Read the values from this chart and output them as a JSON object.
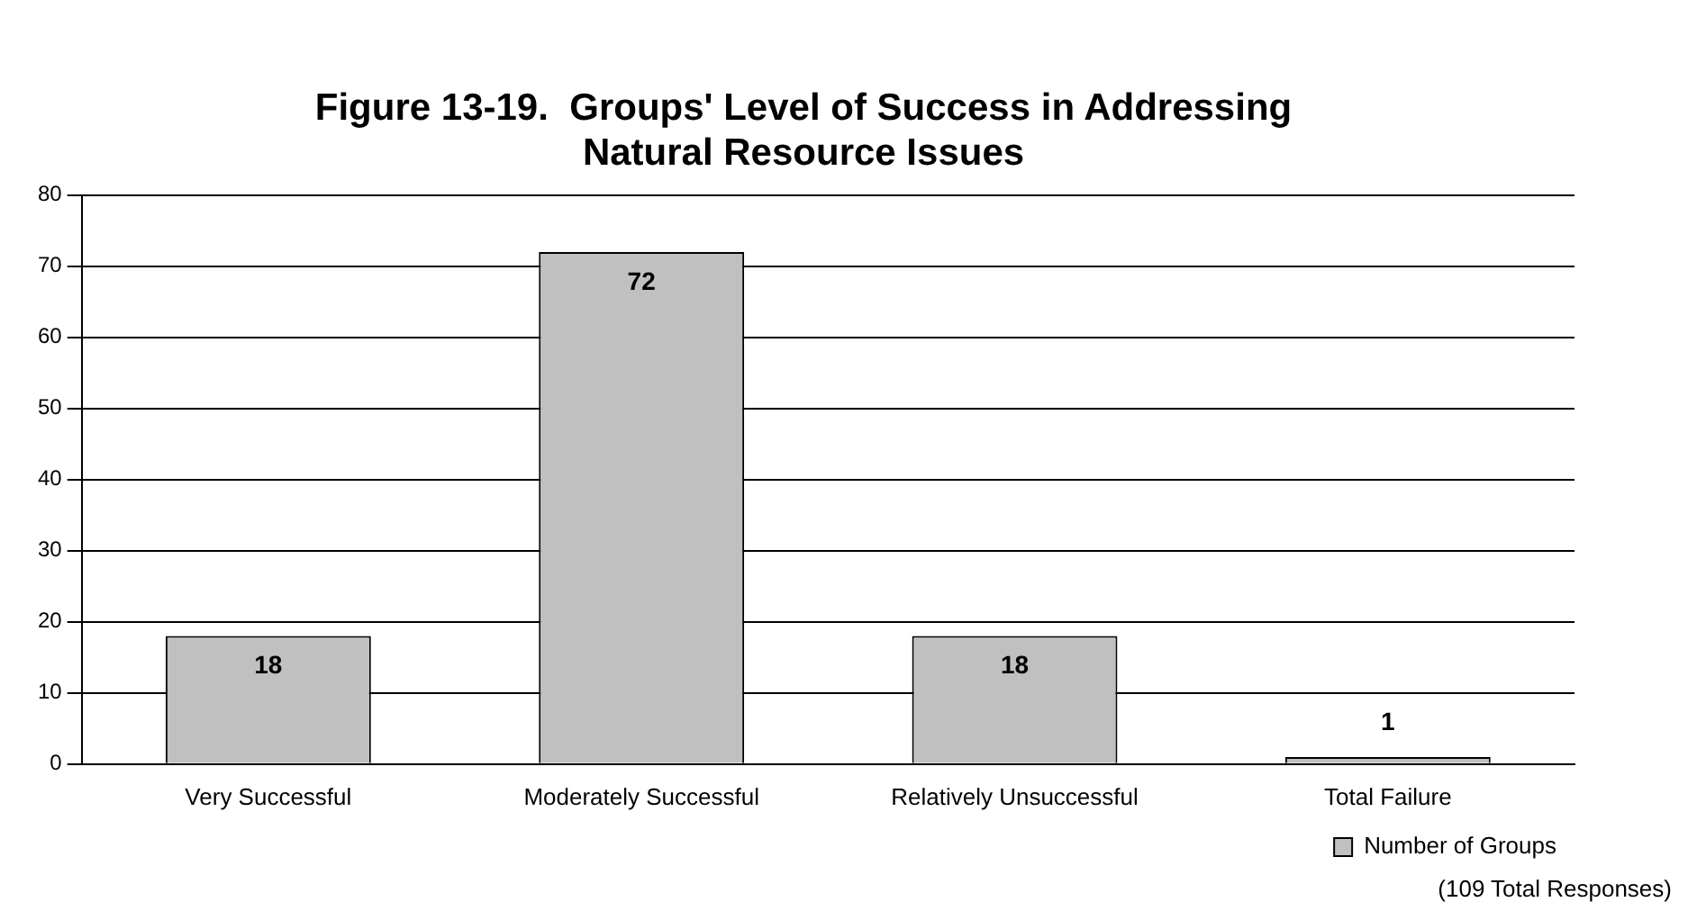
{
  "chart_data": {
    "type": "bar",
    "title": "Figure 13-19.  Groups' Level of Success in Addressing Natural Resource Issues",
    "categories": [
      "Very Successful",
      "Moderately Successful",
      "Relatively Unsuccessful",
      "Total Failure"
    ],
    "series": [
      {
        "name": "Number of Groups",
        "color": "#c0c0c0",
        "values": [
          18,
          72,
          18,
          1
        ]
      }
    ],
    "ylim": [
      0,
      80
    ],
    "yticks": [
      0,
      10,
      20,
      30,
      40,
      50,
      60,
      70,
      80
    ],
    "grid": "y",
    "legend": "bottom right",
    "data_labels": true,
    "annotations": [
      "(109 Total Responses)"
    ]
  }
}
